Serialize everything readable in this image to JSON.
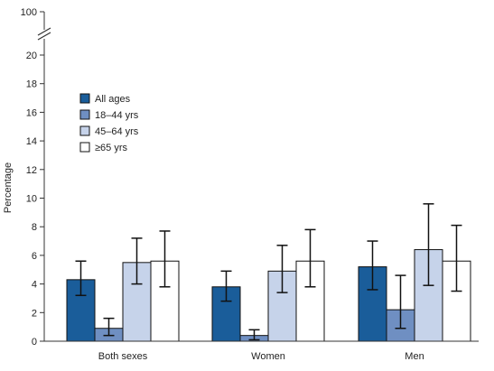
{
  "chart_data": {
    "type": "bar",
    "ylabel": "Percentage",
    "categories": [
      "Both sexes",
      "Women",
      "Men"
    ],
    "y_ticks": [
      "0",
      "2",
      "4",
      "6",
      "8",
      "10",
      "12",
      "14",
      "16",
      "18",
      "20"
    ],
    "y_break_label": "100",
    "ylim": [
      0,
      20
    ],
    "axis_break": true,
    "legend_position": "upper-left inside plot",
    "series": [
      {
        "name": "All ages",
        "color": "#1a5d9a",
        "values": [
          4.3,
          3.8,
          5.2
        ],
        "ci_low": [
          3.2,
          2.8,
          3.6
        ],
        "ci_high": [
          5.6,
          4.9,
          7.0
        ]
      },
      {
        "name": "18–44 yrs",
        "color": "#6f8fc2",
        "values": [
          0.9,
          0.4,
          2.2
        ],
        "ci_low": [
          0.4,
          0.1,
          0.9
        ],
        "ci_high": [
          1.6,
          0.8,
          4.6
        ]
      },
      {
        "name": "45–64 yrs",
        "color": "#c6d3ea",
        "values": [
          5.5,
          4.9,
          6.4
        ],
        "ci_low": [
          4.0,
          3.4,
          3.9
        ],
        "ci_high": [
          7.2,
          6.7,
          9.6
        ]
      },
      {
        "name": "≥65 yrs",
        "color": "#ffffff",
        "values": [
          5.6,
          5.6,
          5.6
        ],
        "ci_low": [
          3.8,
          3.8,
          3.5
        ],
        "ci_high": [
          7.7,
          7.8,
          8.1
        ]
      }
    ]
  }
}
